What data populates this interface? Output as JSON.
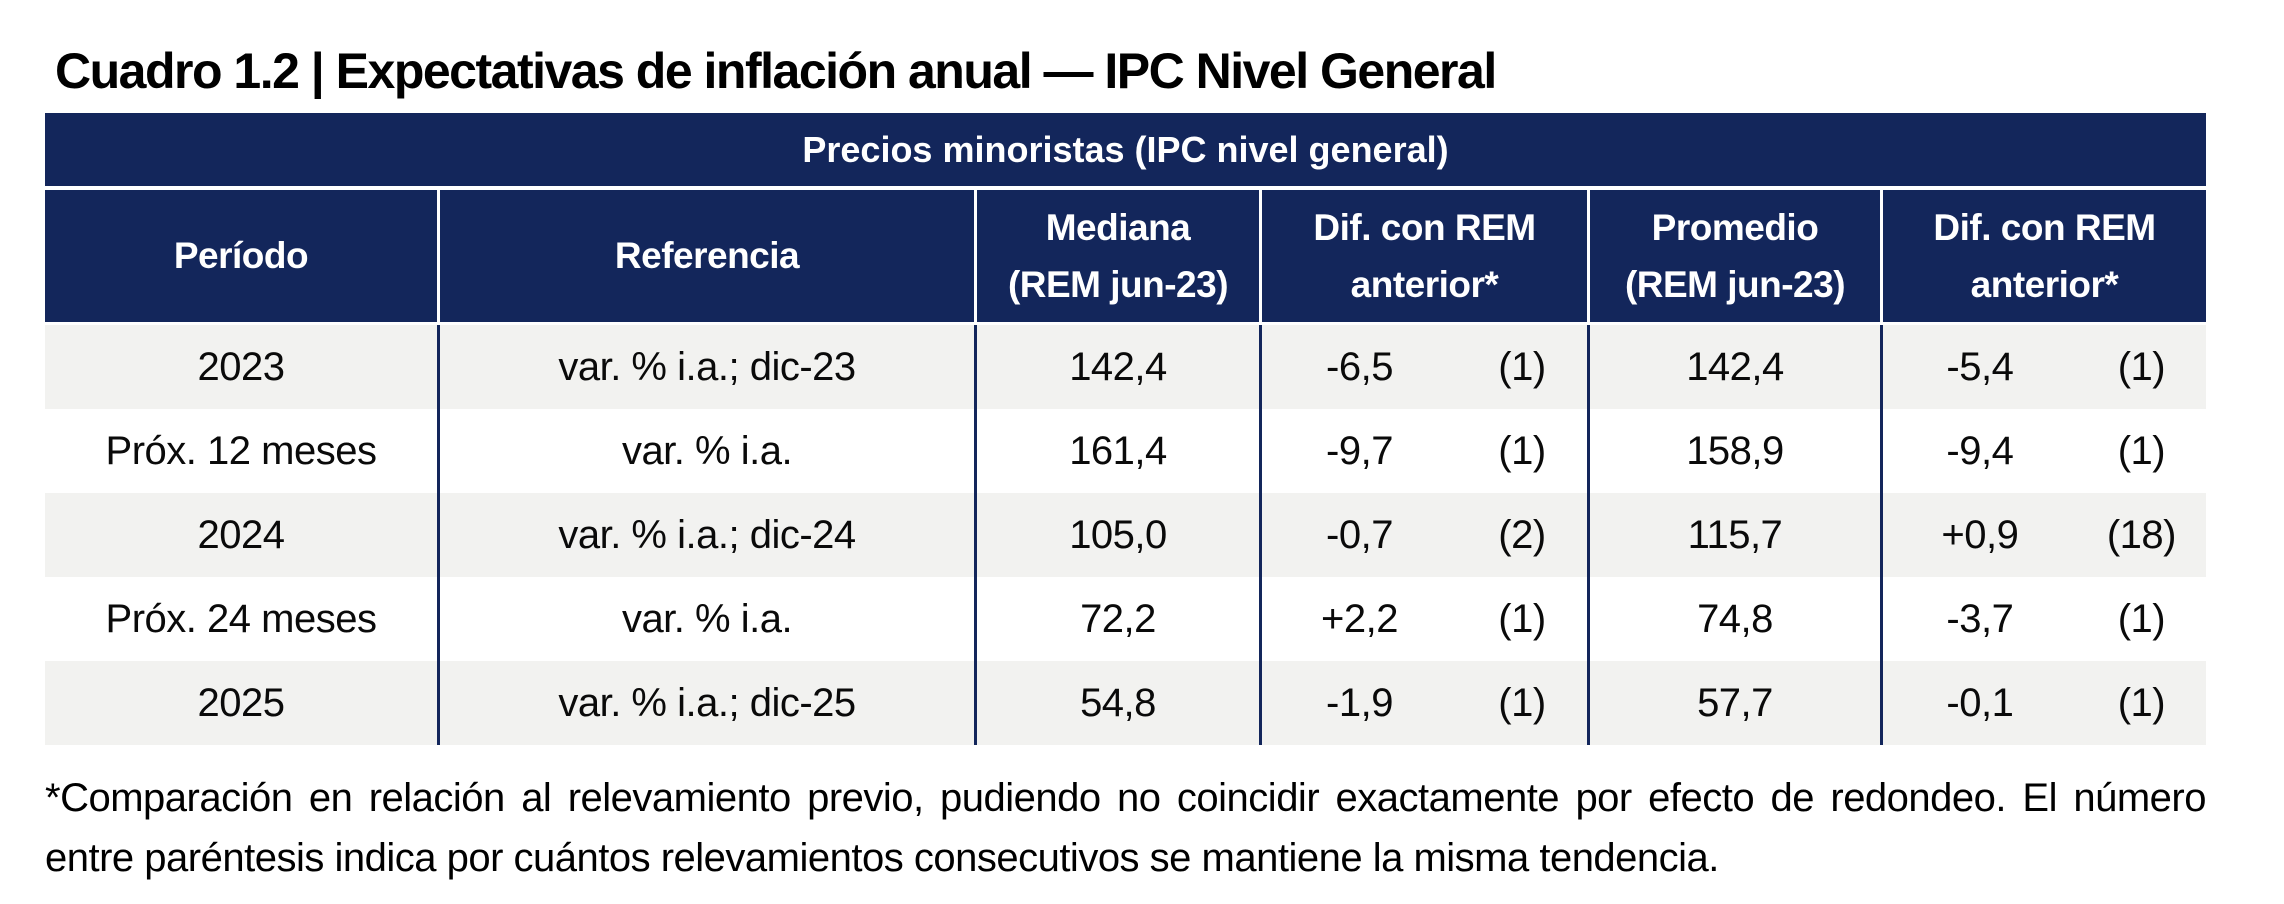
{
  "title": "Cuadro 1.2 | Expectativas de inflación anual — IPC Nivel General",
  "colors": {
    "header_navy": "#13265B",
    "row_stripe": "#F2F2F0",
    "text": "#000000"
  },
  "table": {
    "band_header": "Precios minoristas (IPC nivel general)",
    "columns": [
      "Período",
      "Referencia",
      "Mediana\n(REM jun-23)",
      "Dif. con REM\nanterior*",
      "Promedio\n(REM jun-23)",
      "Dif. con REM\nanterior*"
    ],
    "rows": [
      {
        "periodo": "2023",
        "referencia": "var. % i.a.; dic-23",
        "mediana": "142,4",
        "dif_mediana": "-6,5",
        "dif_mediana_n": "(1)",
        "promedio": "142,4",
        "dif_promedio": "-5,4",
        "dif_promedio_n": "(1)"
      },
      {
        "periodo": "Próx. 12 meses",
        "referencia": "var. % i.a.",
        "mediana": "161,4",
        "dif_mediana": "-9,7",
        "dif_mediana_n": "(1)",
        "promedio": "158,9",
        "dif_promedio": "-9,4",
        "dif_promedio_n": "(1)"
      },
      {
        "periodo": "2024",
        "referencia": "var. % i.a.; dic-24",
        "mediana": "105,0",
        "dif_mediana": "-0,7",
        "dif_mediana_n": "(2)",
        "promedio": "115,7",
        "dif_promedio": "+0,9",
        "dif_promedio_n": "(18)"
      },
      {
        "periodo": "Próx. 24 meses",
        "referencia": "var. % i.a.",
        "mediana": "72,2",
        "dif_mediana": "+2,2",
        "dif_mediana_n": "(1)",
        "promedio": "74,8",
        "dif_promedio": "-3,7",
        "dif_promedio_n": "(1)"
      },
      {
        "periodo": "2025",
        "referencia": "var. % i.a.; dic-25",
        "mediana": "54,8",
        "dif_mediana": "-1,9",
        "dif_mediana_n": "(1)",
        "promedio": "57,7",
        "dif_promedio": "-0,1",
        "dif_promedio_n": "(1)"
      }
    ]
  },
  "footnote": "*Comparación en relación al relevamiento previo, pudiendo no coincidir exactamente por efecto de redondeo. El número entre paréntesis indica por cuántos relevamientos consecutivos se mantiene la misma tendencia."
}
